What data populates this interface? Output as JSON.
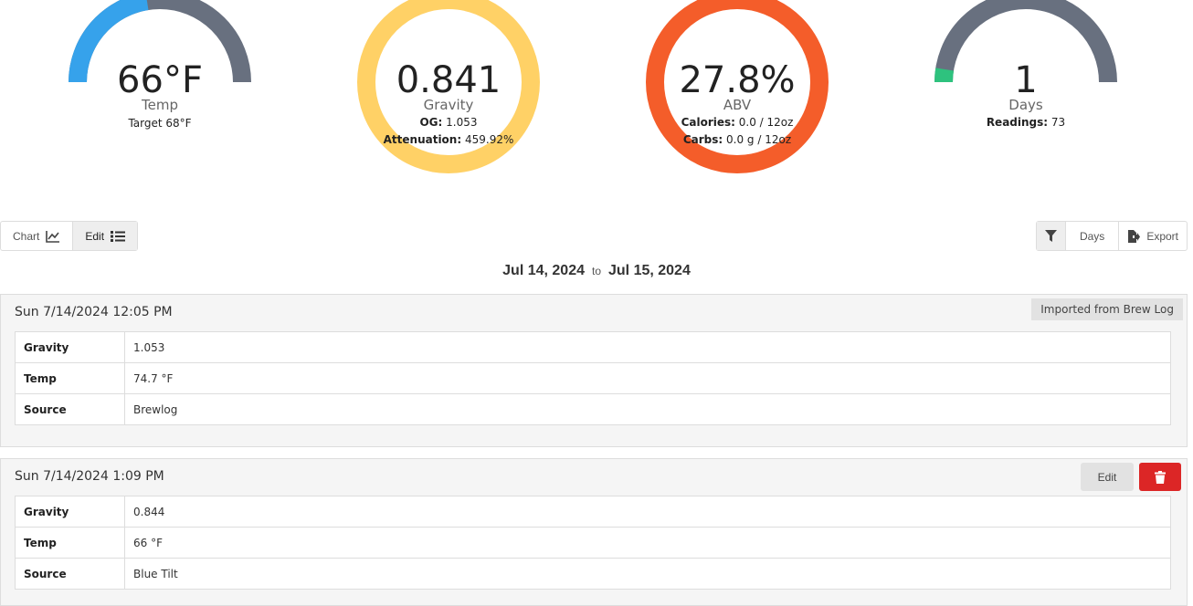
{
  "gauges": {
    "temp": {
      "value": "66°F",
      "label": "Temp",
      "sub1_key": "Target",
      "sub1_val": "68°F",
      "fill_fraction": 0.45,
      "color": "#36a2eb",
      "track": "#68707f"
    },
    "gravity": {
      "value": "0.841",
      "label": "Gravity",
      "sub1_key": "OG:",
      "sub1_val": "1.053",
      "sub2_key": "Attenuation:",
      "sub2_val": "459.92%",
      "color": "#ffd166"
    },
    "abv": {
      "value": "27.8%",
      "label": "ABV",
      "sub1_key": "Calories:",
      "sub1_val": "0.0 / 12oz",
      "sub2_key": "Carbs:",
      "sub2_val": "0.0 g / 12oz",
      "color": "#f45d2a"
    },
    "days": {
      "value": "1",
      "label": "Days",
      "sub1_key": "Readings:",
      "sub1_val": "73",
      "fill_fraction": 0.05,
      "color": "#2ec27e",
      "track": "#68707f"
    }
  },
  "view_toggle": {
    "chart_label": "Chart",
    "edit_label": "Edit"
  },
  "toolbar": {
    "days_label": "Days",
    "export_label": "Export"
  },
  "date_range": {
    "from": "Jul 14, 2024",
    "to_word": "to",
    "to": "Jul 15, 2024"
  },
  "readings": [
    {
      "timestamp": "Sun 7/14/2024 12:05 PM",
      "badge": "Imported from Brew Log",
      "rows": [
        {
          "key": "Gravity",
          "value": "1.053"
        },
        {
          "key": "Temp",
          "value": "74.7 °F"
        },
        {
          "key": "Source",
          "value": "Brewlog"
        }
      ]
    },
    {
      "timestamp": "Sun 7/14/2024 1:09 PM",
      "edit_label": "Edit",
      "rows": [
        {
          "key": "Gravity",
          "value": "0.844"
        },
        {
          "key": "Temp",
          "value": "66 °F"
        },
        {
          "key": "Source",
          "value": "Blue Tilt"
        }
      ]
    }
  ]
}
